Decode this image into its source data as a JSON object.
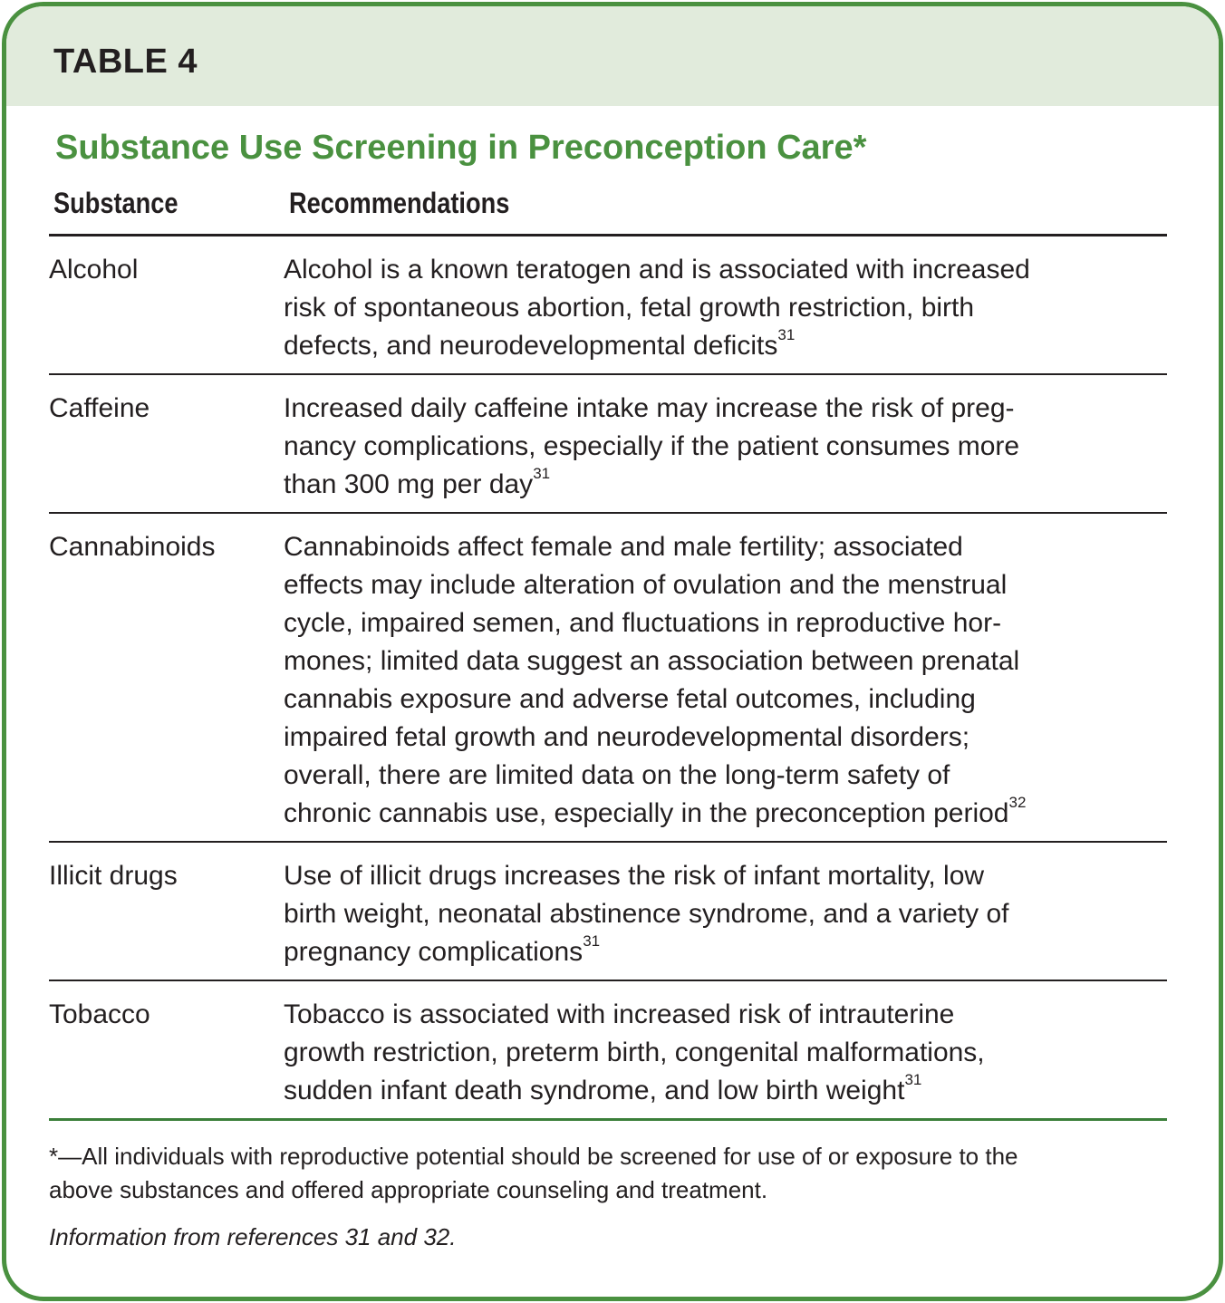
{
  "table_label": "TABLE 4",
  "title": "Substance Use Screening in Preconception Care*",
  "columns": [
    "Substance",
    "Recommendations"
  ],
  "rows": [
    {
      "substance": "Alcohol",
      "lines": [
        "Alcohol is a known teratogen and is associated with increased",
        "risk of spontaneous abortion, fetal growth restriction, birth",
        "defects, and neurodevelopmental deficits"
      ],
      "ref": "31"
    },
    {
      "substance": "Caffeine",
      "lines": [
        "Increased daily caffeine intake may increase the risk of preg-",
        "nancy complications, especially if the patient consumes more",
        "than 300 mg per day"
      ],
      "ref": "31"
    },
    {
      "substance": "Cannabinoids",
      "lines": [
        "Cannabinoids affect female and male fertility; associated",
        "effects may include alteration of ovulation and the menstrual",
        "cycle, impaired semen, and fluctuations in reproductive hor-",
        "mones; limited data suggest an association between prenatal",
        "cannabis exposure and adverse fetal outcomes, including",
        "impaired fetal growth and neurodevelopmental disorders;",
        "overall, there are limited data on the long-term safety of",
        "chronic cannabis use, especially in the preconception period"
      ],
      "ref": "32"
    },
    {
      "substance": "Illicit drugs",
      "lines": [
        "Use of illicit drugs increases the risk of infant mortality, low",
        "birth weight, neonatal abstinence syndrome, and a variety of",
        "pregnancy complications"
      ],
      "ref": "31"
    },
    {
      "substance": "Tobacco",
      "lines": [
        "Tobacco is associated with increased risk of intrauterine",
        "growth restriction, preterm birth, congenital malformations,",
        "sudden infant death syndrome, and low birth weight"
      ],
      "ref": "31"
    }
  ],
  "footnote": [
    "*—All individuals with reproductive potential should be screened for use of or exposure to the",
    "above substances and offered appropriate counseling and treatment."
  ],
  "source": "Information from references 31 and 32.",
  "colors": {
    "border": "#4a9140",
    "header_bg": "#e1ebdc",
    "title": "#4a9140"
  }
}
